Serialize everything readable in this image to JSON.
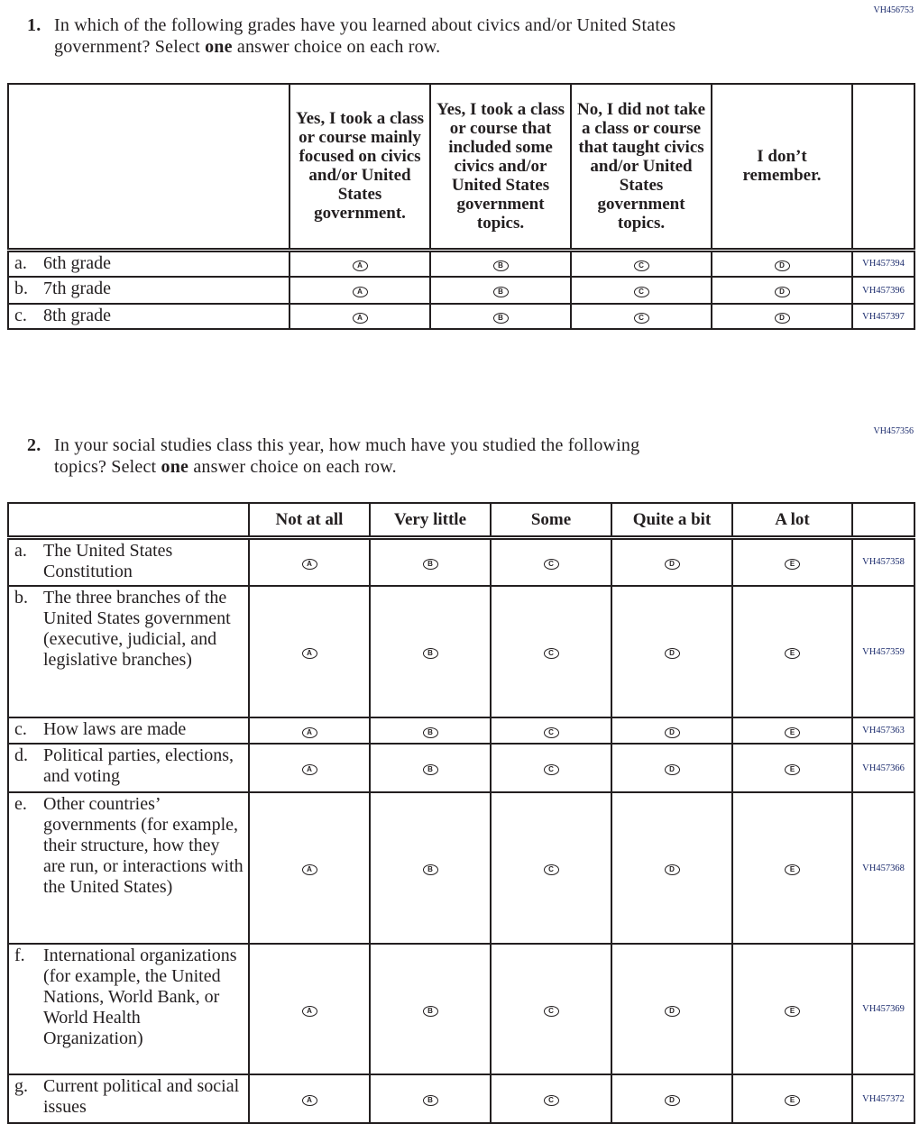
{
  "q1": {
    "id": "VH456753",
    "number": "1.",
    "text_1": "In which of the following grades have you learned about civics and/or United States",
    "text_2a": "government? Select ",
    "text_2b": "one",
    "text_2c": " answer choice on each row.",
    "columns": [
      "Yes, I took a class or course mainly focused on civics and/or United States government.",
      "Yes, I took a class or course that included some civics and/or United States government topics.",
      "No, I did not take a class or course that taught civics and/or United States government topics.",
      "I don’t remember."
    ],
    "options": [
      "A",
      "B",
      "C",
      "D"
    ],
    "rows": [
      {
        "letter": "a.",
        "label": "6th grade",
        "code": "VH457394"
      },
      {
        "letter": "b.",
        "label": "7th grade",
        "code": "VH457396"
      },
      {
        "letter": "c.",
        "label": "8th grade",
        "code": "VH457397"
      }
    ]
  },
  "q2": {
    "id": "VH457356",
    "number": "2.",
    "text_1": "In your social studies class this year, how much have you studied the following",
    "text_2a": "topics? Select ",
    "text_2b": "one",
    "text_2c": " answer choice on each row.",
    "columns": [
      "Not at all",
      "Very little",
      "Some",
      "Quite a bit",
      "A lot"
    ],
    "options": [
      "A",
      "B",
      "C",
      "D",
      "E"
    ],
    "rows": [
      {
        "letter": "a.",
        "label": "The United States Constitution",
        "code": "VH457358"
      },
      {
        "letter": "b.",
        "label": "The three branches of the United States government (executive, judicial, and legislative branches)",
        "code": "VH457359"
      },
      {
        "letter": "c.",
        "label": "How laws are made",
        "code": "VH457363"
      },
      {
        "letter": "d.",
        "label": "Political parties, elections, and voting",
        "code": "VH457366"
      },
      {
        "letter": "e.",
        "label": "Other countries’ governments (for example, their structure, how they are run, or interactions with the United States)",
        "code": "VH457368"
      },
      {
        "letter": "f.",
        "label": "International organizations (for example, the United Nations, World Bank, or World Health Organization)",
        "code": "VH457369"
      },
      {
        "letter": "g.",
        "label": "Current political and social issues",
        "code": "VH457372"
      }
    ]
  }
}
